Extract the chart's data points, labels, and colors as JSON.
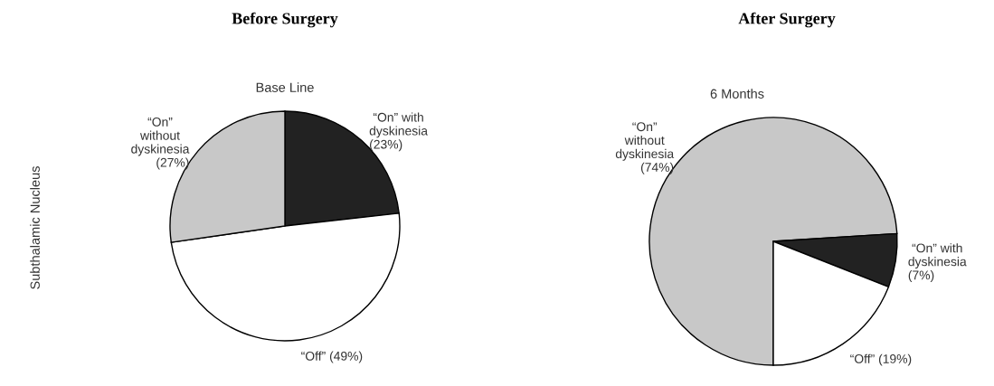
{
  "chart_data": [
    {
      "type": "pie",
      "title": "Before Surgery",
      "subtitle": "Base Line",
      "ylabel": "Subthalamic Nucleus",
      "categories": [
        "“On” with\ndyskinesia",
        "“Off”",
        "“On”\nwithout\ndyskinesia"
      ],
      "values": [
        23,
        49,
        27
      ],
      "value_labels": [
        "(23%)",
        "(49%)",
        "(27%)"
      ],
      "colors": [
        "#222222",
        "#ffffff",
        "#c8c8c8"
      ]
    },
    {
      "type": "pie",
      "title": "After Surgery",
      "subtitle": "6 Months",
      "categories": [
        "“On”\nwithout\ndyskinesia",
        "“On” with\ndyskinesia",
        "“Off”"
      ],
      "values": [
        74,
        7,
        19
      ],
      "value_labels": [
        "(74%)",
        "(7%)",
        "(19%)"
      ],
      "colors": [
        "#c8c8c8",
        "#222222",
        "#ffffff"
      ]
    }
  ]
}
